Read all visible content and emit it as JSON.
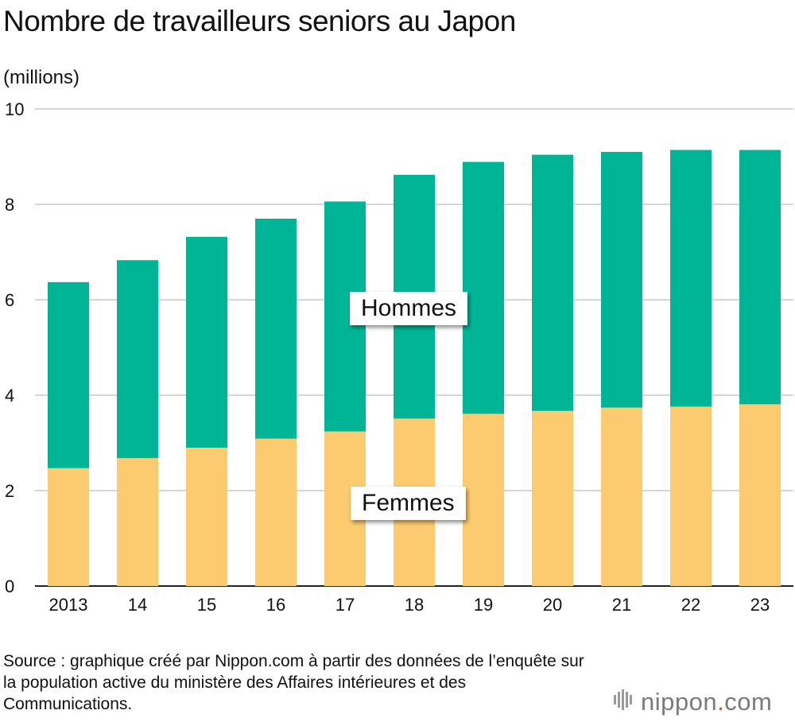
{
  "title": "Nombre de travailleurs seniors au Japon",
  "unit_label": "(millions)",
  "colors": {
    "hommes": "#00b595",
    "femmes": "#fccb70",
    "grid": "#c8c8c8"
  },
  "legend": {
    "hommes": "Hommes",
    "femmes": "Femmes"
  },
  "source": "Source : graphique créé par Nippon.com à partir des données de l’enquête sur la population active du ministère des Affaires intérieures et des Communications.",
  "brand": {
    "name": "nippon",
    "dot": ".",
    "tld": "com",
    "icon": "nippon-logo-icon"
  },
  "chart_data": {
    "type": "bar",
    "stacked": true,
    "title": "Nombre de travailleurs seniors au Japon",
    "ylabel": "(millions)",
    "xlabel": "",
    "ylim": [
      0,
      10
    ],
    "yticks": [
      0,
      2,
      4,
      6,
      8,
      10
    ],
    "categories": [
      "2013",
      "14",
      "15",
      "16",
      "17",
      "18",
      "19",
      "20",
      "21",
      "22",
      "23"
    ],
    "series": [
      {
        "name": "Femmes",
        "values": [
          2.47,
          2.68,
          2.9,
          3.09,
          3.24,
          3.51,
          3.61,
          3.67,
          3.74,
          3.76,
          3.81
        ]
      },
      {
        "name": "Hommes",
        "values": [
          3.9,
          4.15,
          4.42,
          4.61,
          4.82,
          5.11,
          5.28,
          5.37,
          5.36,
          5.38,
          5.33
        ]
      }
    ]
  }
}
